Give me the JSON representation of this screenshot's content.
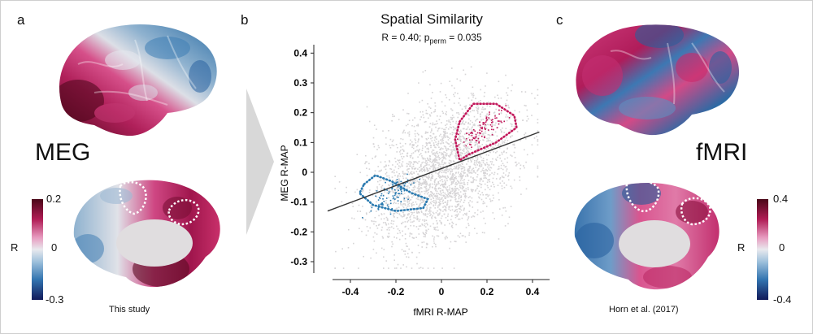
{
  "panels": {
    "a": {
      "letter": "a",
      "modality": "MEG",
      "caption": "This study",
      "colorbar": {
        "label": "R",
        "max": "0.2",
        "mid": "0",
        "min": "-0.3"
      }
    },
    "b": {
      "letter": "b"
    },
    "c": {
      "letter": "c",
      "modality": "fMRI",
      "caption": "Horn et al. (2017)",
      "colorbar": {
        "label": "R",
        "max": "0.4",
        "mid": "0",
        "min": "-0.4"
      }
    }
  },
  "colors": {
    "background_points": "#d6d4d6",
    "cluster_positive": "#c2185b",
    "cluster_negative": "#2a7ab0",
    "fit_line": "#333333"
  },
  "chart_data": {
    "type": "scatter",
    "title": "Spatial Similarity",
    "subtitle_r": "R = 0.40; ",
    "subtitle_p": "p",
    "subtitle_p_sub": "perm",
    "subtitle_pval": " = 0.035",
    "xlabel": "fMRI R-MAP",
    "ylabel": "MEG R-MAP",
    "xlim": [
      -0.5,
      0.45
    ],
    "ylim": [
      -0.33,
      0.42
    ],
    "xticks": [
      "-0.4",
      "-0.2",
      "0",
      "0.2",
      "0.4"
    ],
    "yticks": [
      "0.4",
      "0.3",
      "0.2",
      "0.1",
      "0",
      "-0.1",
      "-0.2",
      "-0.3"
    ],
    "r": 0.4,
    "p_perm": 0.035,
    "fit_line": {
      "x": [
        -0.5,
        0.43
      ],
      "y": [
        -0.13,
        0.135
      ]
    },
    "clusters": [
      {
        "name": "positive cluster",
        "color": "#c2185b",
        "contour_x": [
          0.08,
          0.14,
          0.24,
          0.32,
          0.33,
          0.24,
          0.12,
          0.08,
          0.06
        ],
        "contour_y": [
          0.17,
          0.23,
          0.23,
          0.19,
          0.15,
          0.1,
          0.06,
          0.04,
          0.11
        ]
      },
      {
        "name": "negative cluster",
        "color": "#2a7ab0",
        "contour_x": [
          -0.34,
          -0.29,
          -0.22,
          -0.13,
          -0.06,
          -0.08,
          -0.2,
          -0.3,
          -0.36
        ],
        "contour_y": [
          -0.04,
          -0.01,
          -0.03,
          -0.07,
          -0.09,
          -0.12,
          -0.13,
          -0.11,
          -0.07
        ]
      }
    ]
  }
}
